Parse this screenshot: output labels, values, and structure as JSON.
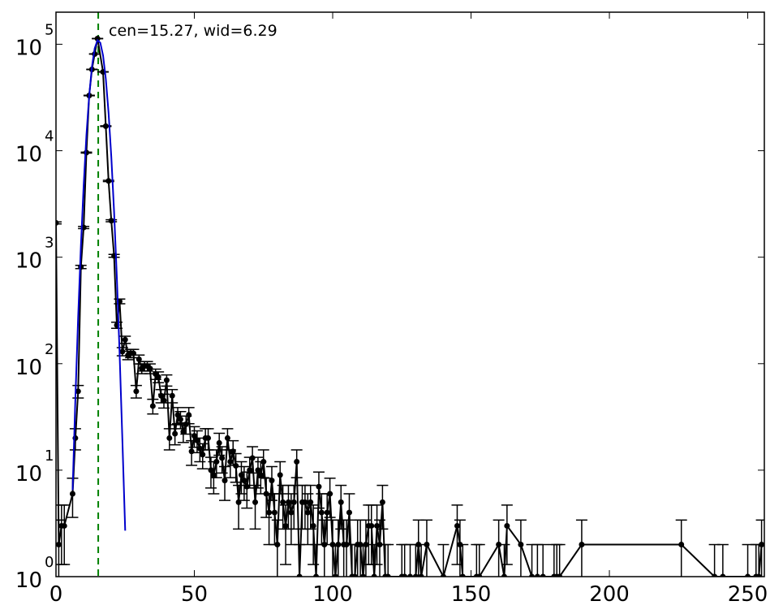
{
  "chart_data": {
    "type": "errorbar",
    "log_y": true,
    "xlim": [
      0,
      256
    ],
    "ylim": [
      1,
      200000
    ],
    "xticks": [
      0,
      50,
      100,
      150,
      200,
      250
    ],
    "yticks": [
      {
        "value": 1,
        "label": "10",
        "exponent": "0"
      },
      {
        "value": 10,
        "label": "10",
        "exponent": "1"
      },
      {
        "value": 100,
        "label": "10",
        "exponent": "2"
      },
      {
        "value": 1000,
        "label": "10",
        "exponent": "3"
      },
      {
        "value": 10000,
        "label": "10",
        "exponent": "4"
      },
      {
        "value": 100000,
        "label": "10",
        "exponent": "5"
      }
    ],
    "color": "#000000",
    "x": [
      0,
      1,
      2,
      3,
      6,
      7,
      8,
      9,
      10,
      11,
      12,
      13,
      14,
      15,
      17,
      18,
      19,
      20,
      21,
      22,
      23,
      24,
      25,
      26,
      27,
      28,
      29,
      30,
      31,
      32,
      33,
      34,
      35,
      36,
      37,
      38,
      39,
      40,
      41,
      42,
      43,
      44,
      45,
      46,
      47,
      48,
      49,
      50,
      51,
      52,
      53,
      54,
      55,
      56,
      57,
      58,
      59,
      60,
      61,
      62,
      63,
      64,
      65,
      66,
      67,
      68,
      69,
      70,
      71,
      72,
      73,
      74,
      75,
      76,
      77,
      78,
      79,
      80,
      81,
      82,
      83,
      84,
      85,
      86,
      87,
      88,
      89,
      90,
      91,
      92,
      93,
      94,
      95,
      96,
      97,
      98,
      99,
      100,
      101,
      102,
      103,
      104,
      105,
      106,
      107,
      108,
      109,
      110,
      111,
      112,
      113,
      114,
      115,
      116,
      117,
      118,
      119,
      120,
      125,
      126,
      128,
      130,
      131,
      132,
      134,
      140,
      145,
      146,
      147,
      152,
      153,
      160,
      162,
      163,
      168,
      172,
      174,
      176,
      180,
      181,
      182,
      190,
      226,
      238,
      241,
      250,
      253,
      254,
      255
    ],
    "values": [
      2100,
      2,
      3,
      3,
      6,
      20,
      55,
      810,
      1900,
      9600,
      33000,
      58000,
      81000,
      113000,
      55000,
      17000,
      5200,
      2200,
      1030,
      230,
      385,
      130,
      168,
      120,
      125,
      125,
      55,
      110,
      90,
      95,
      95,
      90,
      40,
      80,
      75,
      50,
      45,
      70,
      20,
      50,
      22,
      33,
      30,
      23,
      27,
      33,
      15,
      21,
      19,
      16,
      14,
      20,
      20,
      10,
      9,
      12,
      18,
      13,
      8,
      20,
      12,
      15,
      11,
      5,
      9,
      8,
      7,
      10,
      13,
      5,
      10,
      9,
      12,
      6,
      4,
      8,
      4,
      2,
      9,
      5,
      3,
      5,
      4,
      5,
      12,
      1,
      5,
      5,
      4,
      5,
      3,
      1,
      7,
      4,
      2,
      4,
      6,
      2,
      1,
      2,
      5,
      2,
      2,
      4,
      1,
      1,
      2,
      2,
      1,
      2,
      3,
      3,
      1,
      3,
      2,
      5,
      1,
      1,
      1,
      1,
      1,
      1,
      2,
      1,
      2,
      1,
      3,
      2,
      1,
      1,
      1,
      2,
      1,
      3,
      2,
      1,
      1,
      1,
      1,
      1,
      1,
      2,
      2,
      1,
      1,
      1,
      1,
      1,
      2
    ],
    "errors": [
      45.8,
      1.4,
      1.7,
      1.7,
      2.4,
      4.5,
      7.4,
      28.5,
      43.6,
      98,
      181.7,
      240.8,
      284.6,
      336.2,
      234.5,
      130.4,
      72.1,
      46.9,
      32.1,
      15.2,
      19.6,
      11.4,
      13,
      11,
      11.2,
      11.2,
      7.4,
      10.5,
      9.5,
      9.7,
      9.7,
      9.5,
      6.3,
      8.9,
      8.7,
      7.1,
      6.7,
      8.4,
      4.5,
      7.1,
      4.7,
      5.7,
      5.5,
      4.8,
      5.2,
      5.7,
      3.9,
      4.6,
      4.4,
      4,
      3.7,
      4.5,
      4.5,
      3.2,
      3,
      3.5,
      4.2,
      3.6,
      2.8,
      4.5,
      3.5,
      3.9,
      3.3,
      2.2,
      3,
      2.8,
      2.6,
      3.2,
      3.6,
      2.2,
      3.2,
      3,
      3.5,
      2.4,
      2,
      2.8,
      2,
      1.4,
      3,
      2.2,
      1.7,
      2.2,
      2,
      2.2,
      3.5,
      1,
      2.2,
      2.2,
      2,
      2.2,
      1.7,
      1,
      2.6,
      2,
      1.4,
      2,
      2.4,
      1.4,
      1,
      1.4,
      2.2,
      1.4,
      1.4,
      2,
      1,
      1,
      1.4,
      1.4,
      1,
      1.4,
      1.7,
      1.7,
      1,
      1.7,
      1.4,
      2.2,
      1,
      1,
      1,
      1,
      1,
      1,
      1.4,
      1,
      1.4,
      1,
      1.7,
      1.4,
      1,
      1,
      1,
      1.4,
      1,
      1.7,
      1.4,
      1,
      1,
      1,
      1,
      1,
      1,
      1.4,
      1.4,
      1,
      1,
      1,
      1,
      1,
      1.4
    ],
    "fit": {
      "color": "#0000cc",
      "x": [
        6,
        7,
        8,
        9,
        10,
        11,
        12,
        13,
        14,
        15,
        16,
        17,
        18,
        19,
        20,
        21,
        22,
        23,
        24,
        25
      ],
      "values": [
        6.5,
        47,
        272,
        1270,
        4700,
        13900,
        32700,
        61300,
        91600,
        109100,
        103400,
        78400,
        47300,
        22700,
        8700,
        2670,
        645,
        125,
        19.5,
        2.7
      ]
    },
    "vline": {
      "x": 15.27,
      "color": "#008000",
      "style": "dashed"
    },
    "annotation": {
      "text": "cen=15.27, wid=6.29",
      "color": "#008000"
    }
  }
}
